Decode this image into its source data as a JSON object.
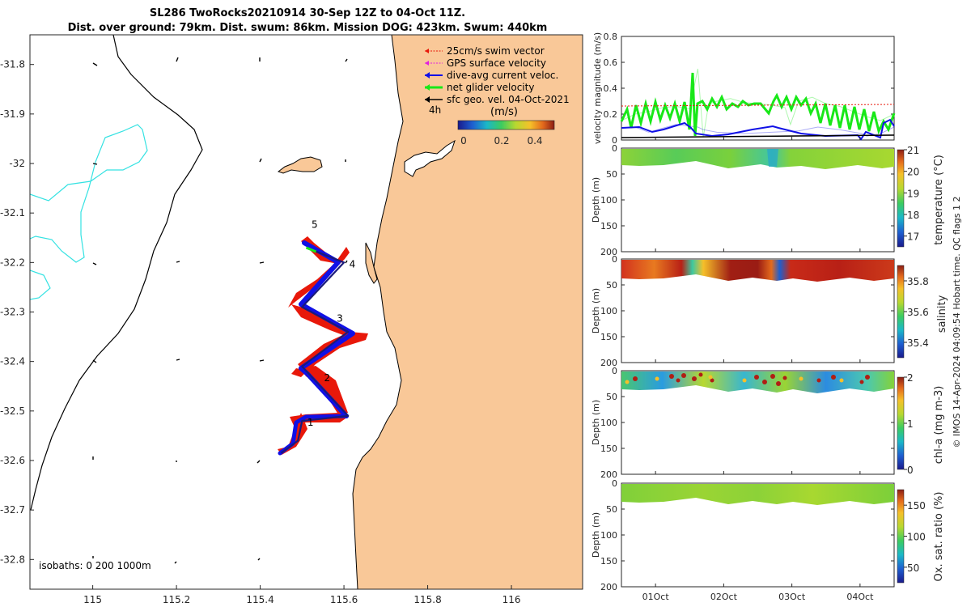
{
  "title_line1": "SL286 TwoRocks20210914 30-Sep 12Z to 04-Oct 11Z.",
  "title_line2": "Dist. over ground: 79km. Dist. swum: 86km. Mission DOG: 423km. Swum: 440km",
  "colors": {
    "land": "#f9c898",
    "sea": "#ffffff",
    "isobath_200": "#34e2e2",
    "glider_track": "#1010e6",
    "swim_vector": "#e8180a",
    "gps_velocity": "#e020e0",
    "net_velocity": "#18e818"
  },
  "chart_data": [
    {
      "type": "map",
      "xlabel_ticks": [
        "115",
        "115.2",
        "115.4",
        "115.6",
        "115.8",
        "116"
      ],
      "ylabel_ticks": [
        "-31.8",
        "-31.9",
        "-32",
        "-32.1",
        "-32.2",
        "-32.3",
        "-32.4",
        "-32.5",
        "-32.6",
        "-32.7",
        "-32.8"
      ],
      "lon_range": [
        114.85,
        116.17
      ],
      "lat_range": [
        -32.86,
        -31.74
      ],
      "legend": [
        {
          "label": "25cm/s swim vector",
          "color": "#e8180a"
        },
        {
          "label": "GPS surface velocity",
          "color": "#e020e0"
        },
        {
          "label": "dive-avg current veloc.",
          "color": "#1010e6"
        },
        {
          "label": "net glider velocity",
          "color": "#18e818"
        },
        {
          "label": "sfc geo. vel. 04-Oct-2021",
          "color": "#000000"
        }
      ],
      "legend_position": "top-right",
      "time_label": "4h",
      "colorbar_unit": "(m/s)",
      "colorbar_ticks": [
        "0",
        "0.2",
        "0.4"
      ],
      "isobath_label": "isobaths: 0   200  1000m",
      "day_markers": [
        {
          "label": "1",
          "lon": 115.52,
          "lat": -32.53
        },
        {
          "label": "2",
          "lon": 115.56,
          "lat": -32.44
        },
        {
          "label": "3",
          "lon": 115.59,
          "lat": -32.32
        },
        {
          "label": "4",
          "lon": 115.62,
          "lat": -32.21
        },
        {
          "label": "5",
          "lon": 115.53,
          "lat": -32.13
        }
      ],
      "track": [
        {
          "lon": 115.45,
          "lat": -32.585
        },
        {
          "lon": 115.49,
          "lat": -32.56
        },
        {
          "lon": 115.5,
          "lat": -32.52
        },
        {
          "lon": 115.61,
          "lat": -32.51
        },
        {
          "lon": 115.5,
          "lat": -32.41
        },
        {
          "lon": 115.61,
          "lat": -32.34
        },
        {
          "lon": 115.5,
          "lat": -32.29
        },
        {
          "lon": 115.6,
          "lat": -32.2
        },
        {
          "lon": 115.51,
          "lat": -32.17
        }
      ]
    },
    {
      "type": "line",
      "ylabel": "velocity magnitude (m/s)",
      "ylim": [
        0,
        0.8
      ],
      "yticks": [
        "0",
        "0.2",
        "0.4",
        "0.6",
        "0.8"
      ],
      "series": [
        {
          "name": "net glider velocity",
          "color": "#18e818",
          "x": [
            0,
            0.05,
            0.1,
            0.15,
            0.2,
            0.25,
            0.28,
            0.3,
            0.32,
            0.35,
            0.4,
            0.45,
            0.5,
            0.55,
            0.6,
            0.62,
            0.65,
            0.7,
            0.75,
            0.8,
            0.85,
            0.9,
            0.95,
            1
          ],
          "y": [
            0.15,
            0.2,
            0.22,
            0.25,
            0.26,
            0.24,
            0.55,
            0.02,
            0.28,
            0.3,
            0.32,
            0.29,
            0.28,
            0.27,
            0.25,
            0.12,
            0.3,
            0.33,
            0.28,
            0.26,
            0.22,
            0.18,
            0.15,
            0.2
          ]
        },
        {
          "name": "dive-avg current veloc.",
          "color": "#1010e6",
          "x": [
            0,
            0.05,
            0.1,
            0.2,
            0.28,
            0.3,
            0.35,
            0.45,
            0.55,
            0.65,
            0.72,
            0.8,
            0.88,
            0.9,
            0.95,
            1
          ],
          "y": [
            0.09,
            0.1,
            0.06,
            0.12,
            0.1,
            0.08,
            0.06,
            0.05,
            0.06,
            0.07,
            0.1,
            0.08,
            0.05,
            0.03,
            0.05,
            0.1
          ]
        },
        {
          "name": "sfc geo. vel.",
          "color": "#000000",
          "x": [
            0,
            1
          ],
          "y": [
            0.02,
            0.04
          ]
        }
      ]
    },
    {
      "type": "heatmap",
      "ylabel": "Depth (m)",
      "yticks": [
        "0",
        "50",
        "100",
        "150",
        "200"
      ],
      "colorbar_label": "temperature (°C)",
      "colorbar_ticks": [
        "17",
        "18",
        "19",
        "20",
        "21"
      ]
    },
    {
      "type": "heatmap",
      "ylabel": "Depth (m)",
      "yticks": [
        "0",
        "50",
        "100",
        "150",
        "200"
      ],
      "colorbar_label": "salinity",
      "colorbar_ticks": [
        "35.4",
        "35.6",
        "35.8"
      ]
    },
    {
      "type": "heatmap",
      "ylabel": "Depth (m)",
      "yticks": [
        "0",
        "50",
        "100",
        "150",
        "200"
      ],
      "colorbar_label": "chl-a (mg m-3)",
      "colorbar_ticks": [
        "0",
        "1",
        "2"
      ]
    },
    {
      "type": "heatmap",
      "ylabel": "Depth (m)",
      "yticks": [
        "0",
        "50",
        "100",
        "150",
        "200"
      ],
      "colorbar_label": "Ox. sat. ratio (%)",
      "colorbar_ticks": [
        "50",
        "100",
        "150"
      ],
      "xticks": [
        "01Oct",
        "02Oct",
        "03Oct",
        "04Oct"
      ]
    }
  ],
  "side_text": "© IMOS 14-Apr-2024 04:09:54 Hobart time. QC flags 1  2"
}
